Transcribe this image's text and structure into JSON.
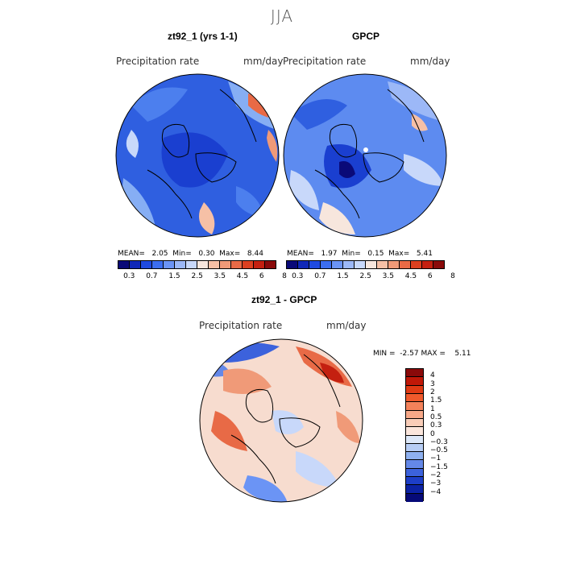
{
  "season": "JJA",
  "panels": {
    "model": {
      "title": "zt92_1 (yrs 1-1)",
      "variable": "Precipitation rate",
      "units": "mm/day",
      "stats": {
        "mean_label": "MEAN=",
        "mean": "2.05",
        "min_label": "Min=",
        "min": "0.30",
        "max_label": "Max=",
        "max": "8.44"
      }
    },
    "obs": {
      "title": "GPCP",
      "variable": "Precipitation rate",
      "units": "mm/day",
      "stats": {
        "mean_label": "MEAN=",
        "mean": "1.97",
        "min_label": "Min=",
        "min": "0.15",
        "max_label": "Max=",
        "max": "5.41"
      }
    },
    "diff": {
      "title": "zt92_1 - GPCP",
      "variable": "Precipitation rate",
      "units": "mm/day",
      "stats": {
        "min_label": "MIN =",
        "min": "-2.57",
        "max_label": "MAX =",
        "max": "5.11"
      }
    }
  },
  "abs_colorbar": {
    "colors": [
      "#0a0a78",
      "#1028b8",
      "#1f4ae0",
      "#3c6ef0",
      "#6b94f5",
      "#9cb8f7",
      "#c8d8fa",
      "#f7e6dd",
      "#f6c0a6",
      "#f09a78",
      "#e86a46",
      "#dc4020",
      "#c42010",
      "#8a0a0a"
    ],
    "tick_labels": [
      "0.3",
      "0.7",
      "1.5",
      "2.5",
      "3.5",
      "4.5",
      "6",
      "8"
    ]
  },
  "diff_colorbar": {
    "colors_top_to_bottom": [
      "#8a0a0a",
      "#c01808",
      "#e03a14",
      "#f05a2c",
      "#f4825a",
      "#f7a888",
      "#f9cdb8",
      "#fbe6dc",
      "#dde8f8",
      "#b7cdf4",
      "#8eb0ef",
      "#6488e8",
      "#3c62dc",
      "#1d3ec8",
      "#0c22a4",
      "#060a78"
    ],
    "labels_top_to_bottom": [
      "4",
      "3",
      "2",
      "1.5",
      "1",
      "0.5",
      "0.3",
      "0",
      "−0.3",
      "−0.5",
      "−1",
      "−1.5",
      "−2",
      "−3",
      "−4"
    ]
  },
  "map_colors": {
    "model": {
      "base": "#2f5fe0",
      "patches": [
        "#1a3fd0",
        "#4c7fee",
        "#86aef4",
        "#f6c0a6",
        "#e86a46"
      ]
    },
    "obs": {
      "base": "#5d8bf0",
      "patches": [
        "#2f5fe0",
        "#9cb8f7",
        "#c8d8fa",
        "#f7e6dd",
        "#1a3fd0"
      ]
    },
    "diff": {
      "base": "#f7dccf",
      "patches": [
        "#e86a46",
        "#f09a78",
        "#c8d8fa",
        "#6b94f5",
        "#c42010"
      ]
    }
  }
}
